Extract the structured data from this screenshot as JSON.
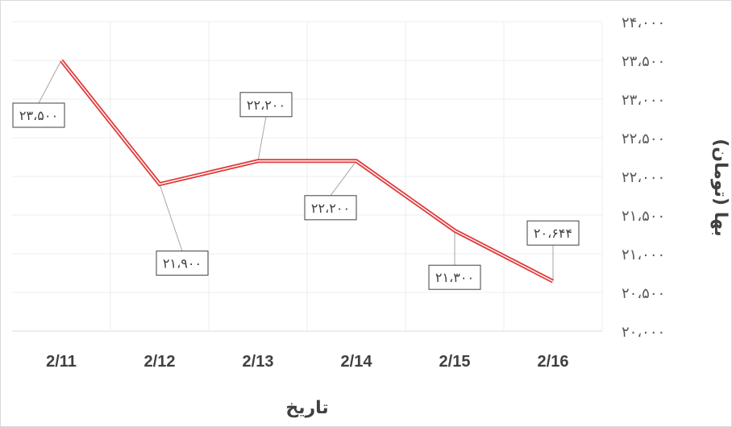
{
  "chart_data": {
    "type": "line",
    "categories": [
      "2/11",
      "2/12",
      "2/13",
      "2/14",
      "2/15",
      "2/16"
    ],
    "series": [
      {
        "values": [
          23500,
          21900,
          22200,
          22200,
          21300,
          20644
        ]
      }
    ],
    "data_labels": [
      "۲۳،۵۰۰",
      "۲۱،۹۰۰",
      "۲۲،۲۰۰",
      "۲۲،۲۰۰",
      "۲۱،۳۰۰",
      "۲۰،۶۴۴"
    ],
    "y_ticks": [
      20000,
      20500,
      21000,
      21500,
      22000,
      22500,
      23000,
      23500,
      24000
    ],
    "y_tick_labels": [
      "۲۰،۰۰۰",
      "۲۰،۵۰۰",
      "۲۱،۰۰۰",
      "۲۱،۵۰۰",
      "۲۲،۰۰۰",
      "۲۲،۵۰۰",
      "۲۳،۰۰۰",
      "۲۳،۵۰۰",
      "۲۴،۰۰۰"
    ],
    "ylim": [
      20000,
      24000
    ],
    "xlabel": "تاریخ",
    "ylabel": "بها (تومان)",
    "y_axis_side": "right",
    "grid": true,
    "line_color": "#e03c3c",
    "line_style": "double"
  }
}
